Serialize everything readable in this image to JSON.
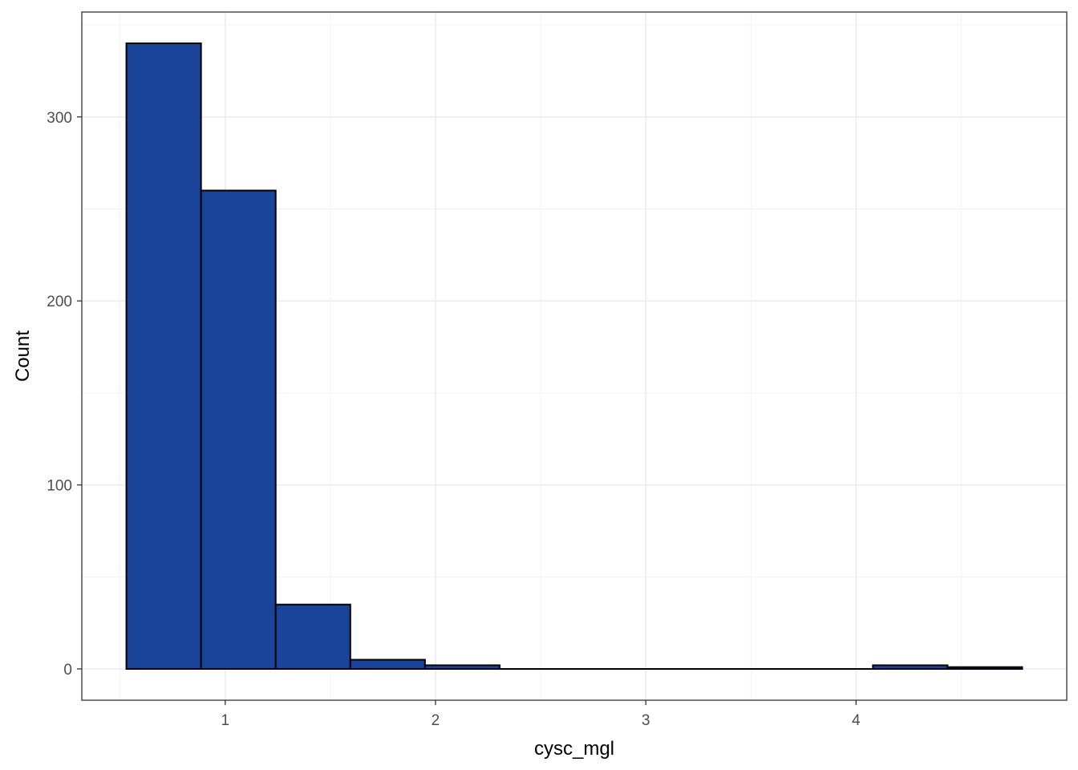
{
  "chart_data": {
    "type": "bar",
    "subtype": "histogram",
    "title": "",
    "xlabel": "cysc_mgl",
    "ylabel": "Count",
    "bin_width": 0.355,
    "bins": [
      {
        "x_start": 0.53,
        "x_end": 0.885,
        "count": 340
      },
      {
        "x_start": 0.885,
        "x_end": 1.24,
        "count": 260
      },
      {
        "x_start": 1.24,
        "x_end": 1.595,
        "count": 35
      },
      {
        "x_start": 1.595,
        "x_end": 1.95,
        "count": 5
      },
      {
        "x_start": 1.95,
        "x_end": 2.305,
        "count": 2
      },
      {
        "x_start": 2.305,
        "x_end": 2.66,
        "count": 0
      },
      {
        "x_start": 2.66,
        "x_end": 3.015,
        "count": 0
      },
      {
        "x_start": 3.015,
        "x_end": 3.37,
        "count": 0
      },
      {
        "x_start": 3.37,
        "x_end": 3.725,
        "count": 0
      },
      {
        "x_start": 3.725,
        "x_end": 4.08,
        "count": 0
      },
      {
        "x_start": 4.08,
        "x_end": 4.435,
        "count": 2
      },
      {
        "x_start": 4.435,
        "x_end": 4.79,
        "count": 1
      }
    ],
    "xlim": [
      0.318,
      5.002
    ],
    "ylim": [
      -17,
      357
    ],
    "x_ticks": [
      1,
      2,
      3,
      4
    ],
    "y_ticks": [
      0,
      100,
      200,
      300
    ],
    "grid": true,
    "legend": "none",
    "colors": {
      "bar_fill": "#1a4499",
      "bar_outline": "#000000",
      "panel_background": "#ffffff",
      "grid": "#ebebeb"
    }
  }
}
